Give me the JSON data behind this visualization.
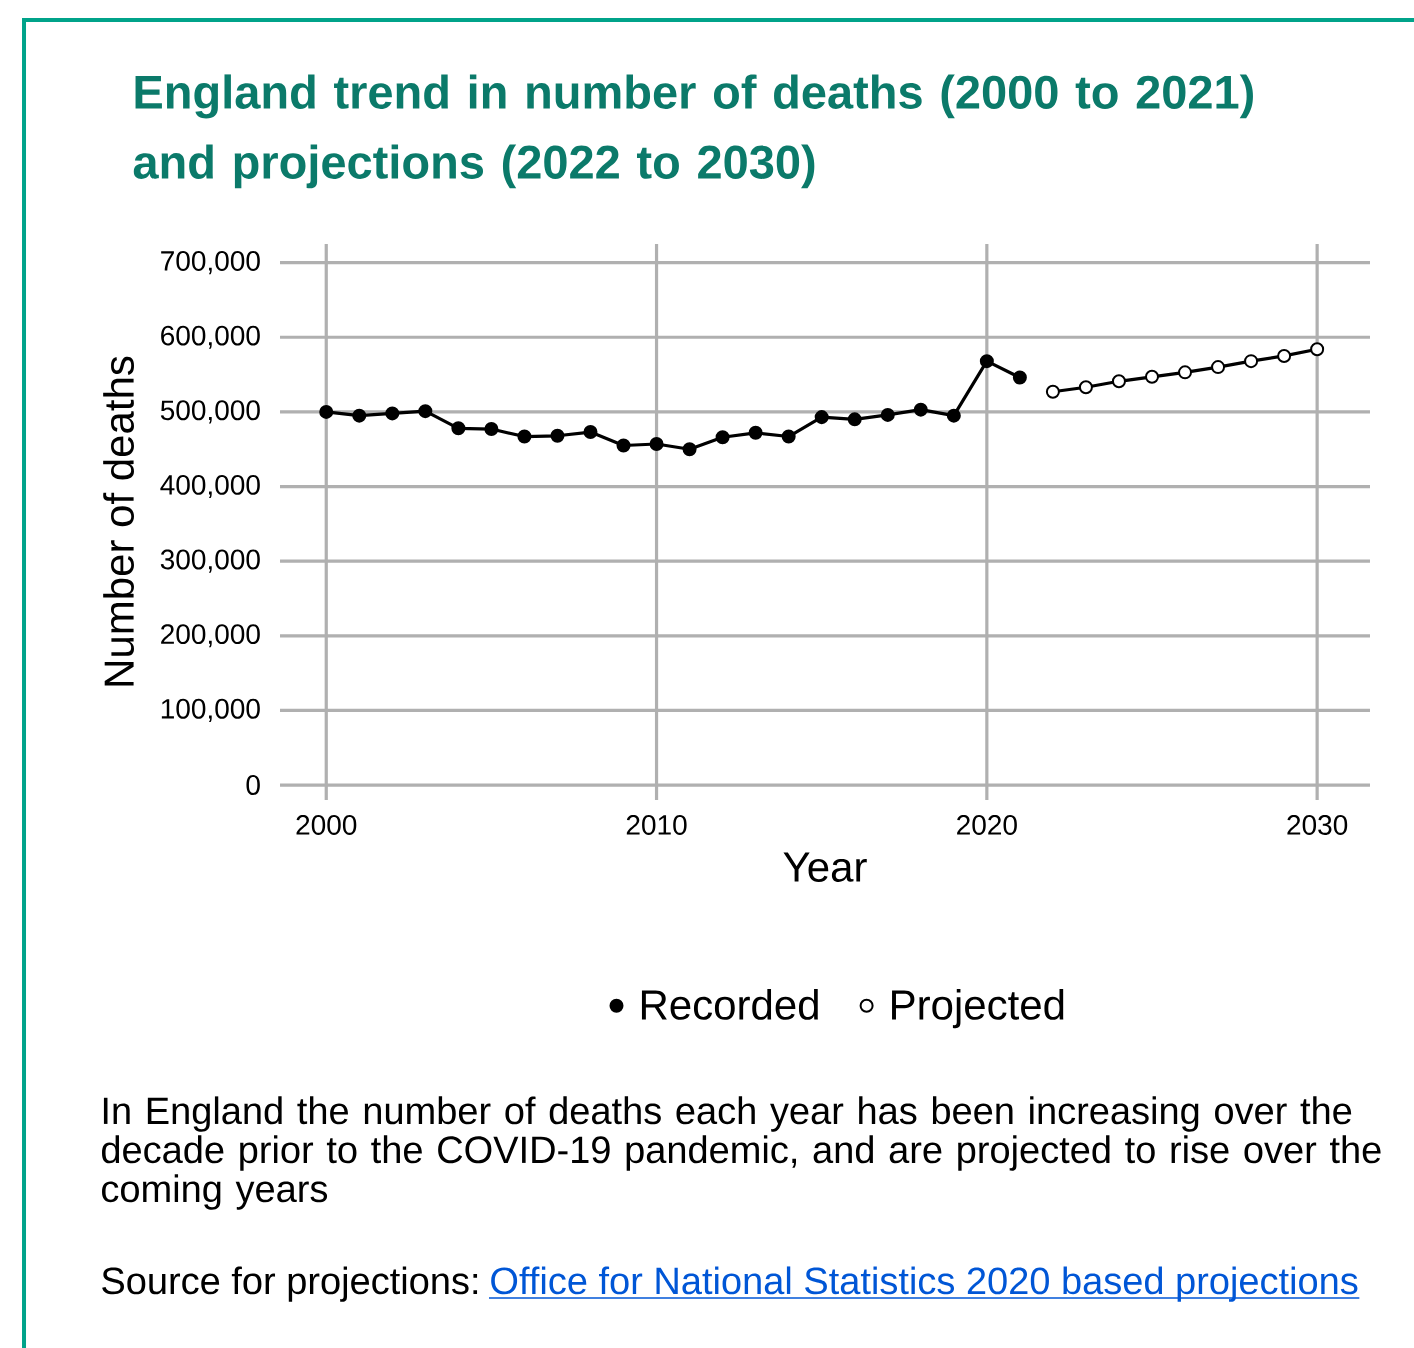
{
  "chart_data": {
    "type": "line",
    "title": "England trend in number of deaths (2000 to 2021) and projections (2022 to 2030)",
    "xlabel": "Year",
    "ylabel": "Number of deaths",
    "series": [
      {
        "name": "Recorded",
        "color": "#000000",
        "x": [
          2000,
          2001,
          2002,
          2003,
          2004,
          2005,
          2006,
          2007,
          2008,
          2009,
          2010,
          2011,
          2012,
          2013,
          2014,
          2015,
          2016,
          2017,
          2018,
          2019,
          2020,
          2021
        ],
        "values": [
          500000,
          495000,
          498000,
          501000,
          478000,
          477000,
          467000,
          468000,
          473000,
          455000,
          457000,
          450000,
          466000,
          472000,
          467000,
          493000,
          490000,
          496000,
          503000,
          495000,
          568000,
          546000
        ]
      },
      {
        "name": "Projected",
        "color": "#000000",
        "colors": [
          "#ffffff",
          "#ffffff",
          "#ffffff",
          "#ffffff",
          "#ffffff",
          "#ffffff",
          "#ffffff",
          "#ffffff",
          "#ffffff"
        ],
        "x": [
          2022,
          2023,
          2024,
          2025,
          2026,
          2027,
          2028,
          2029,
          2030
        ],
        "values": [
          527000,
          533000,
          541000,
          547000,
          553000,
          560000,
          568000,
          575000,
          584000
        ]
      }
    ],
    "xlim": [
      1998.6,
      2031.6
    ],
    "xticks": [
      2000,
      2010,
      2020,
      2030
    ],
    "ylim": [
      -20000,
      725000
    ],
    "yticks": [
      {
        "value": 0,
        "label": "0"
      },
      {
        "value": 100000,
        "label": "100,000"
      },
      {
        "value": 200000,
        "label": "200,000"
      },
      {
        "value": 300000,
        "label": "300,000"
      },
      {
        "value": 400000,
        "label": "400,000"
      },
      {
        "value": 500000,
        "label": "500,000"
      },
      {
        "value": 600000,
        "label": "600,000"
      },
      {
        "value": 700000,
        "label": "700,000"
      }
    ],
    "grid": true,
    "legend": "bottom",
    "marker": "circle",
    "line_style": "solid",
    "annotations": [
      "In England the number of deaths each year has been increasing over the decade prior to the COVID-19 pandemic, and are projected to rise over the coming years",
      "Source for projections:",
      "Office for National Statistics 2020 based projections"
    ]
  }
}
